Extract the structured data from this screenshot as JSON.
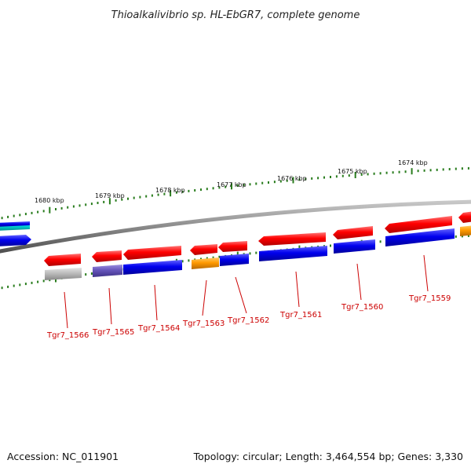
{
  "title": "Thioalkalivibrio sp. HL-EbGR7, complete genome",
  "footer": {
    "accession": "Accession: NC_011901",
    "topology": "Topology: circular; Length: 3,464,554 bp; Genes: 3,330"
  },
  "colors": {
    "backbone": "#8a8a8a",
    "ticks": "#2a7d1e",
    "label": "#cc0000",
    "forward_gene": "#ff0000",
    "reverse_gene": "#0000ee",
    "orange_gene": "#ff9900",
    "purple_gene": "#6655bb",
    "gray_gene": "#bbbbbb",
    "cyan_gene": "#00dddd"
  },
  "scale_labels": [
    "1680 kbp",
    "1679 kbp",
    "1678 kbp",
    "1677 kbp",
    "1676 kbp",
    "1675 kbp",
    "1674 kbp"
  ],
  "gene_labels": [
    "Tgr7_1566",
    "Tgr7_1565",
    "Tgr7_1564",
    "Tgr7_1563",
    "Tgr7_1562",
    "Tgr7_1561",
    "Tgr7_1560",
    "Tgr7_1559"
  ]
}
